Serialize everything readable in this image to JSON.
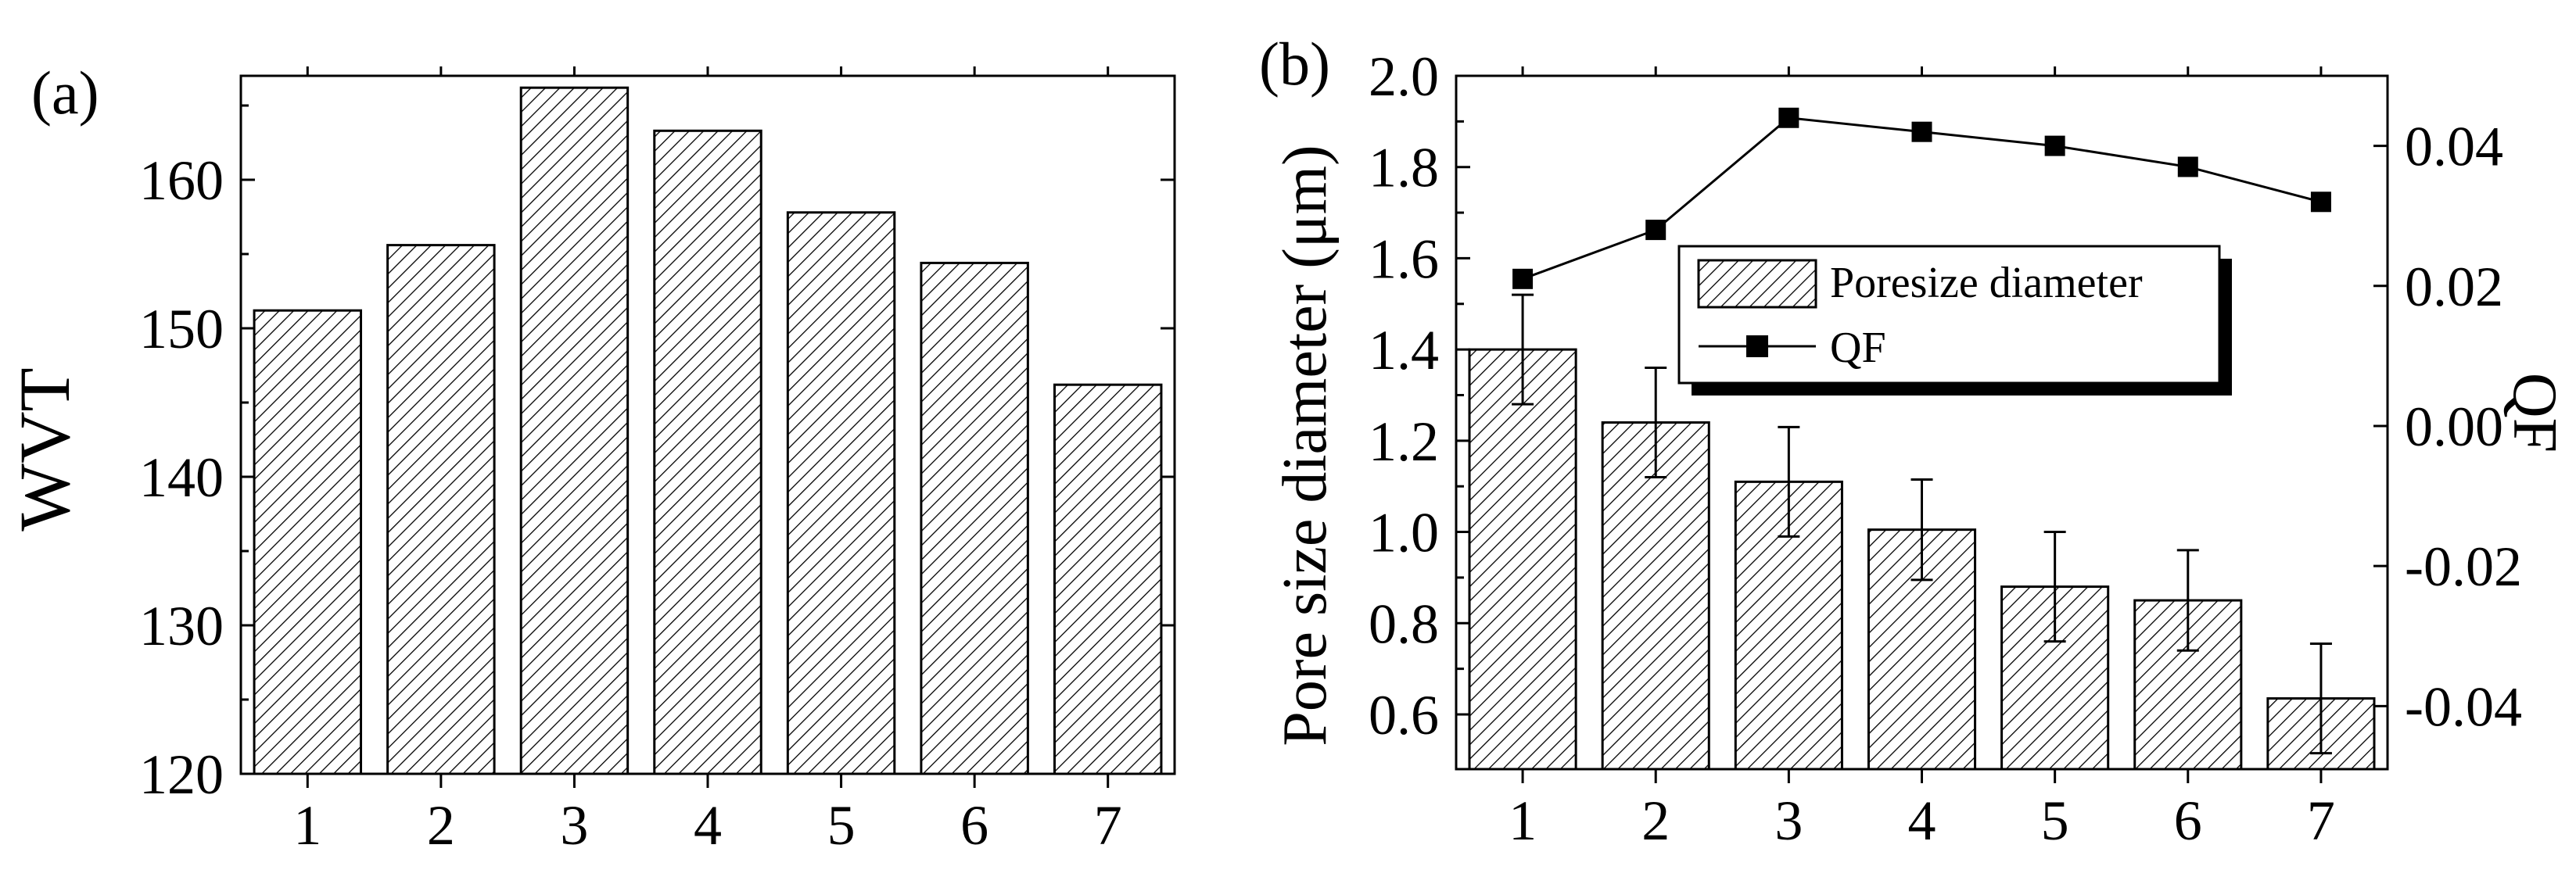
{
  "chart_data": [
    {
      "panel_label": "(a)",
      "type": "bar",
      "title": "",
      "xlabel": "",
      "ylabel": "WVT",
      "categories": [
        "1",
        "2",
        "3",
        "4",
        "5",
        "6",
        "7"
      ],
      "values": [
        151.2,
        155.6,
        166.2,
        163.3,
        157.8,
        154.4,
        146.2
      ],
      "ylim": [
        120,
        167
      ],
      "yticks": [
        "120",
        "130",
        "140",
        "150",
        "160"
      ],
      "fill": "diagonal-hatch",
      "grid": false
    },
    {
      "panel_label": "(b)",
      "type": "bar",
      "title": "",
      "xlabel": "",
      "ylabel": "Pore size diameter (μm)",
      "y2label": "QF",
      "categories": [
        "1",
        "2",
        "3",
        "4",
        "5",
        "6",
        "7"
      ],
      "ylim": [
        0.48,
        2.0
      ],
      "yticks": [
        "0.6",
        "0.8",
        "1.0",
        "1.2",
        "1.4",
        "1.6",
        "1.8",
        "2.0"
      ],
      "y2lim": [
        -0.049,
        0.05
      ],
      "y2ticks": [
        "-0.04",
        "-0.02",
        "0.00",
        "0.02",
        "0.04"
      ],
      "legend_position": "upper-middle",
      "grid": false,
      "series": [
        {
          "name": "Poresize diameter",
          "type": "bar",
          "axis": "left",
          "values": [
            1.4,
            1.24,
            1.11,
            1.005,
            0.88,
            0.85,
            0.635
          ],
          "errors": [
            0.12,
            0.12,
            0.12,
            0.11,
            0.12,
            0.11,
            0.12
          ]
        },
        {
          "name": "QF",
          "type": "line",
          "axis": "right",
          "marker": "square",
          "values": [
            0.021,
            0.028,
            0.044,
            0.042,
            0.04,
            0.037,
            0.032
          ]
        }
      ]
    }
  ]
}
